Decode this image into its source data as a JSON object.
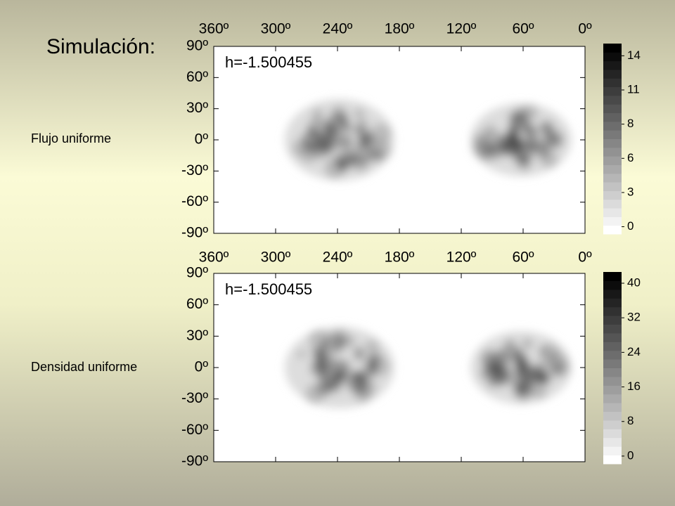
{
  "title": "Simulación:",
  "chart_data": [
    {
      "type": "heatmap",
      "label": "Flujo uniforme",
      "annotation": "h=-1.500455",
      "xlim": [
        360,
        0
      ],
      "xticks": [
        {
          "value": 360,
          "label": "360º"
        },
        {
          "value": 300,
          "label": "300º"
        },
        {
          "value": 240,
          "label": "240º"
        },
        {
          "value": 180,
          "label": "180º"
        },
        {
          "value": 120,
          "label": "120º"
        },
        {
          "value": 60,
          "label": "60º"
        },
        {
          "value": 0,
          "label": "0º"
        }
      ],
      "ylim": [
        -90,
        90
      ],
      "yticks": [
        {
          "value": 90,
          "label": "90º"
        },
        {
          "value": 60,
          "label": "60º"
        },
        {
          "value": 30,
          "label": "30º"
        },
        {
          "value": 0,
          "label": "0º"
        },
        {
          "value": -30,
          "label": "-30º"
        },
        {
          "value": -60,
          "label": "-60º"
        },
        {
          "value": -90,
          "label": "-90º"
        }
      ],
      "colorbar": {
        "lim": [
          -0.6,
          15
        ],
        "ticks": [
          {
            "value": 0,
            "label": "0"
          },
          {
            "value": 2.8,
            "label": "3"
          },
          {
            "value": 5.6,
            "label": "6"
          },
          {
            "value": 8.4,
            "label": "8"
          },
          {
            "value": 11.2,
            "label": "11"
          },
          14
        ]
      }
    },
    {
      "type": "heatmap",
      "label": "Densidad uniforme",
      "annotation": "h=-1.500455",
      "xlim": [
        360,
        0
      ],
      "xticks": [
        {
          "value": 360,
          "label": "360º"
        },
        {
          "value": 300,
          "label": "300º"
        },
        {
          "value": 240,
          "label": "240º"
        },
        {
          "value": 180,
          "label": "180º"
        },
        {
          "value": 120,
          "label": "120º"
        },
        {
          "value": 60,
          "label": "60º"
        },
        {
          "value": 0,
          "label": "0º"
        }
      ],
      "ylim": [
        -90,
        90
      ],
      "yticks": [
        {
          "value": 90,
          "label": "90º"
        },
        {
          "value": 60,
          "label": "60º"
        },
        {
          "value": 30,
          "label": "30º"
        },
        {
          "value": 0,
          "label": "0º"
        },
        {
          "value": -30,
          "label": "-30º"
        },
        {
          "value": -60,
          "label": "-60º"
        },
        {
          "value": -90,
          "label": "-90º"
        }
      ],
      "colorbar": {
        "lim": [
          -1.8,
          42.6
        ],
        "ticks": [
          0,
          8,
          16,
          24,
          32,
          40
        ]
      }
    }
  ]
}
